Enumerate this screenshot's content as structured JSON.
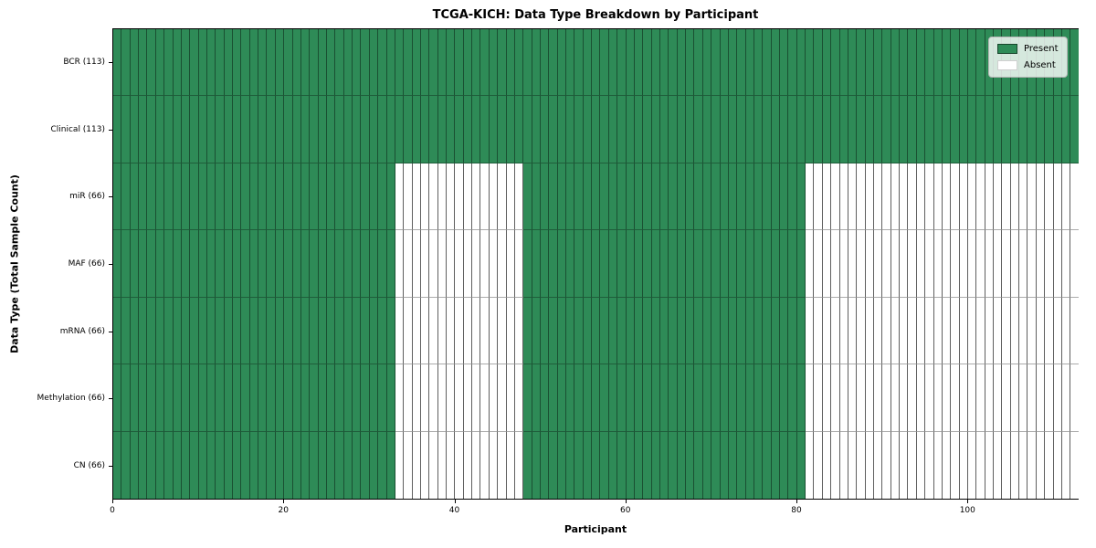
{
  "title": "TCGA-KICH: Data Type Breakdown by Participant",
  "chart_data": {
    "type": "heatmap",
    "title": "TCGA-KICH: Data Type Breakdown by Participant",
    "xlabel": "Participant",
    "ylabel": "Data Type (Total Sample Count)",
    "xlim": [
      0,
      113
    ],
    "n_participants": 113,
    "x_ticks": [
      0,
      20,
      40,
      60,
      80,
      100
    ],
    "grid": false,
    "legend_position": "upper right",
    "legend_labels": {
      "present": "Present",
      "absent": "Absent"
    },
    "colors": {
      "present": "#2E8B57",
      "absent": "#FFFFFF"
    },
    "rows": [
      {
        "label": "BCR (113)",
        "data_type": "BCR",
        "total_samples": 113,
        "present_ranges": [
          [
            0,
            113
          ]
        ]
      },
      {
        "label": "Clinical (113)",
        "data_type": "Clinical",
        "total_samples": 113,
        "present_ranges": [
          [
            0,
            113
          ]
        ]
      },
      {
        "label": "miR (66)",
        "data_type": "miR",
        "total_samples": 66,
        "present_ranges": [
          [
            0,
            33
          ],
          [
            48,
            81
          ]
        ]
      },
      {
        "label": "MAF (66)",
        "data_type": "MAF",
        "total_samples": 66,
        "present_ranges": [
          [
            0,
            33
          ],
          [
            48,
            81
          ]
        ]
      },
      {
        "label": "mRNA (66)",
        "data_type": "mRNA",
        "total_samples": 66,
        "present_ranges": [
          [
            0,
            33
          ],
          [
            48,
            81
          ]
        ]
      },
      {
        "label": "Methylation (66)",
        "data_type": "Methylation",
        "total_samples": 66,
        "present_ranges": [
          [
            0,
            33
          ],
          [
            48,
            81
          ]
        ]
      },
      {
        "label": "CN (66)",
        "data_type": "CN",
        "total_samples": 66,
        "present_ranges": [
          [
            0,
            33
          ],
          [
            48,
            81
          ]
        ]
      }
    ]
  }
}
